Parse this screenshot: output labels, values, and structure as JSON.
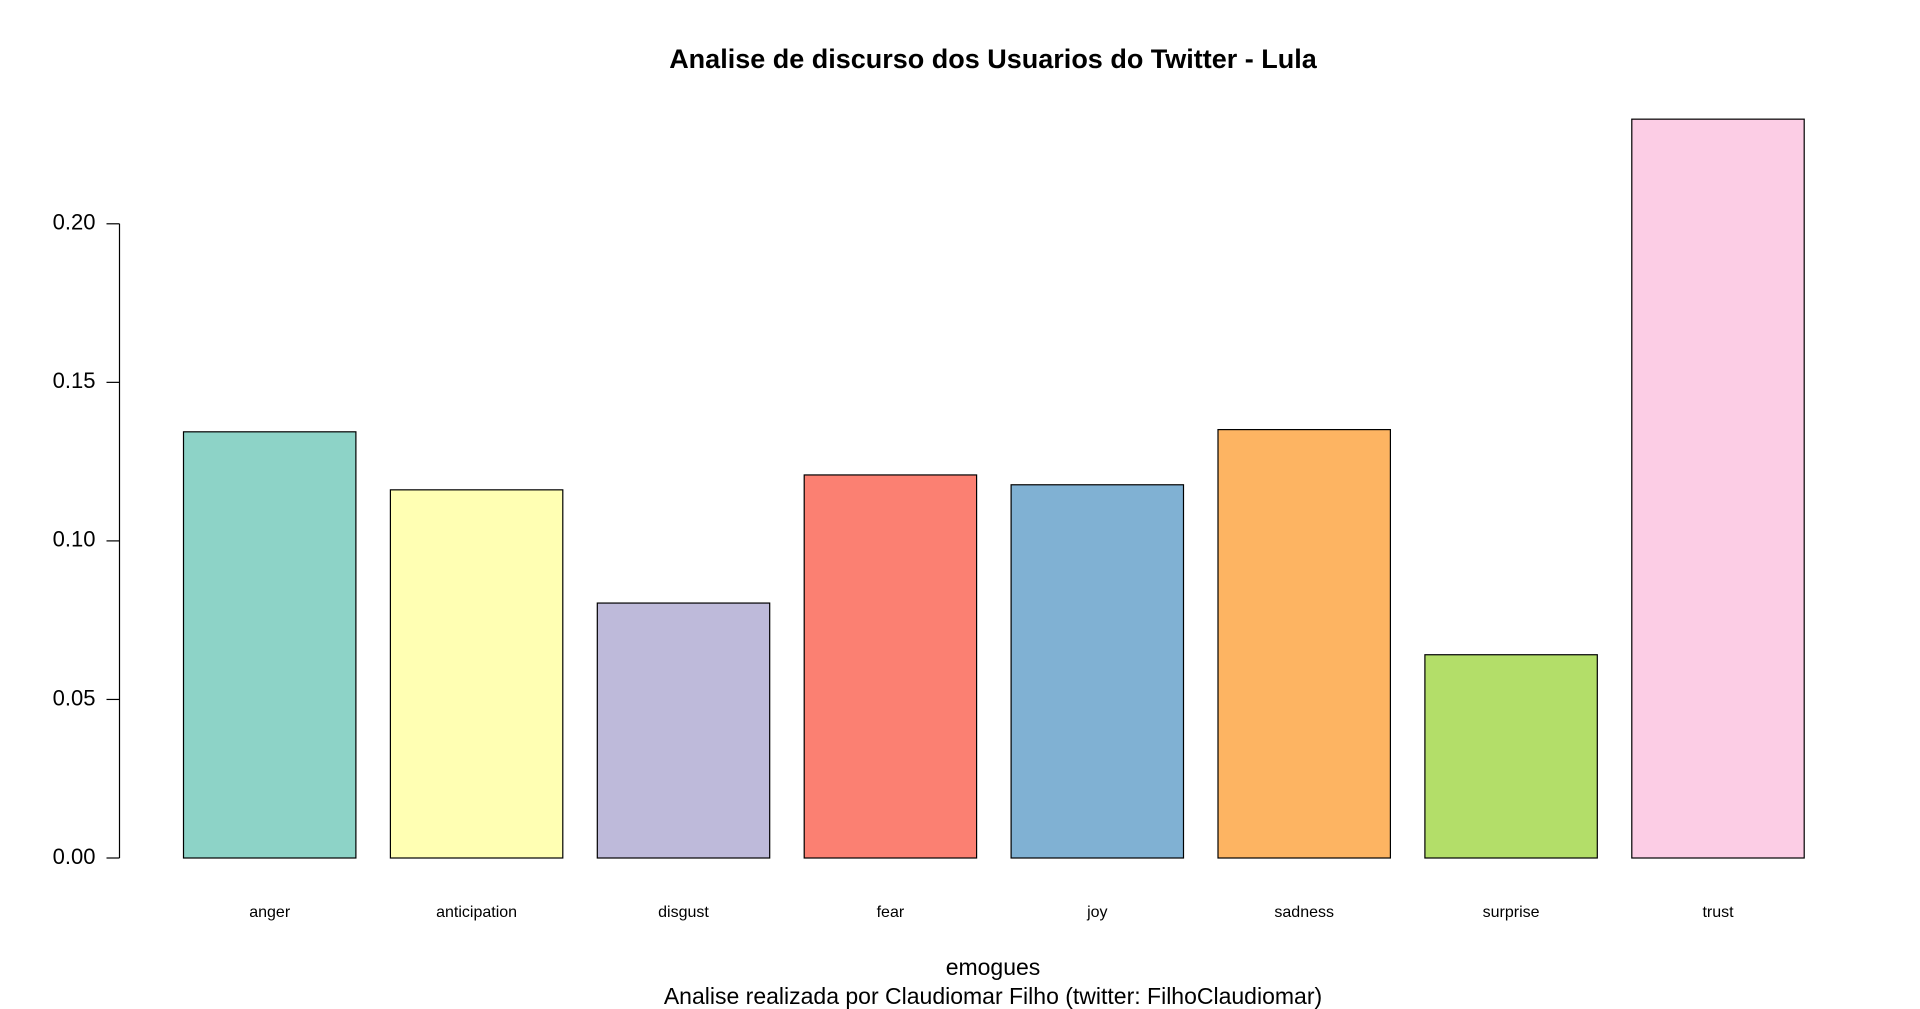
{
  "chart_data": {
    "type": "bar",
    "title": "Analise de discurso dos Usuarios do Twitter - Lula",
    "x_label": "emogues",
    "subtitle": "Analise realizada por Claudiomar Filho (twitter: FilhoClaudiomar)",
    "categories": [
      "anger",
      "anticipation",
      "disgust",
      "fear",
      "joy",
      "sadness",
      "surprise",
      "trust"
    ],
    "values": [
      0.1344,
      0.1161,
      0.0804,
      0.1208,
      0.1177,
      0.1351,
      0.0641,
      0.233
    ],
    "colors": [
      "#8DD3C7",
      "#FFFFB3",
      "#BEBADA",
      "#FB8072",
      "#80B1D3",
      "#FDB462",
      "#B3DE69",
      "#FCCDE5"
    ],
    "ylim": [
      0,
      0.24
    ],
    "yticks": [
      {
        "value": 0,
        "label": "0.00"
      },
      {
        "value": 0.05,
        "label": "0.05"
      },
      {
        "value": 0.1,
        "label": "0.10"
      },
      {
        "value": 0.15,
        "label": "0.15"
      },
      {
        "value": 0.2,
        "label": "0.20"
      }
    ],
    "grid": false
  }
}
